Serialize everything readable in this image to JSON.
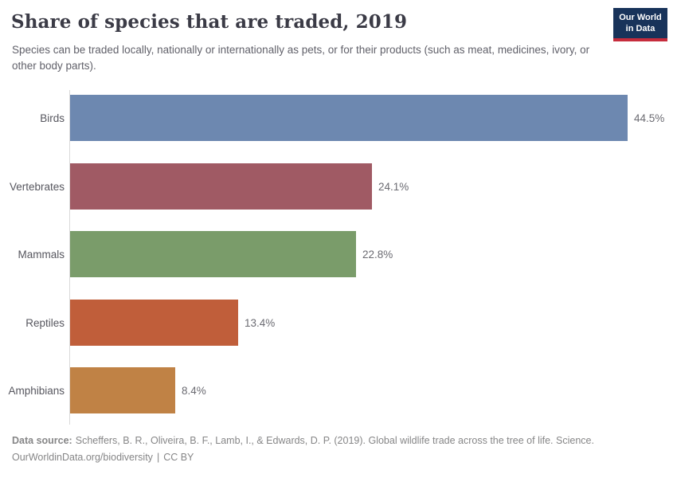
{
  "header": {
    "title": "Share of species that are traded, 2019",
    "subtitle": "Species can be traded locally, nationally or internationally as pets, or for their products (such as meat, medicines, ivory, or other body parts).",
    "logo": {
      "line1": "Our World",
      "line2": "in Data",
      "bg_color": "#18335a",
      "accent_color": "#c62c3c"
    }
  },
  "chart_data": {
    "type": "bar",
    "orientation": "horizontal",
    "title": "Share of species that are traded, 2019",
    "categories": [
      "Birds",
      "Vertebrates",
      "Mammals",
      "Reptiles",
      "Amphibians"
    ],
    "values": [
      44.5,
      24.1,
      22.8,
      13.4,
      8.4
    ],
    "value_labels": [
      "44.5%",
      "24.1%",
      "22.8%",
      "13.4%",
      "8.4%"
    ],
    "bar_colors": [
      "#6d88b0",
      "#a05a64",
      "#7a9c6a",
      "#c05e3a",
      "#c08245"
    ],
    "unit": "%",
    "xlim": [
      0,
      44.5
    ],
    "grid": false,
    "legend": "none",
    "axis_color": "#dadada"
  },
  "footer": {
    "source_label": "Data source:",
    "source_text": "Scheffers, B. R., Oliveira, B. F., Lamb, I., & Edwards, D. P. (2019). Global wildlife trade across the tree of life. Science.",
    "url": "OurWorldinData.org/biodiversity",
    "separator": "|",
    "license": "CC BY"
  }
}
